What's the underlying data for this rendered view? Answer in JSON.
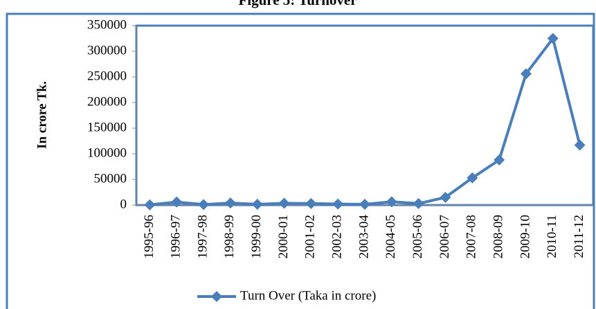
{
  "chart_data": {
    "type": "line",
    "title": "Figure 5: Turnover",
    "y_label": "In crore Tk.",
    "categories": [
      "1995-96",
      "1996-97",
      "1997-98",
      "1998-99",
      "1999-00",
      "2000-01",
      "2001-02",
      "2002-03",
      "2003-04",
      "2004-05",
      "2005-06",
      "2006-07",
      "2007-08",
      "2008-09",
      "2009-10",
      "2010-11",
      "2011-12"
    ],
    "series": [
      {
        "name": "Turn Over (Taka in crore)",
        "color": "#4a7ebb",
        "values": [
          500,
          6000,
          1000,
          4000,
          1500,
          3500,
          3000,
          2000,
          1500,
          6500,
          3000,
          15000,
          53000,
          88000,
          256000,
          325000,
          117000
        ]
      }
    ],
    "ylim": [
      0,
      350000
    ],
    "yticks": [
      0,
      50000,
      100000,
      150000,
      200000,
      250000,
      300000,
      350000
    ],
    "legend": "bottom"
  }
}
